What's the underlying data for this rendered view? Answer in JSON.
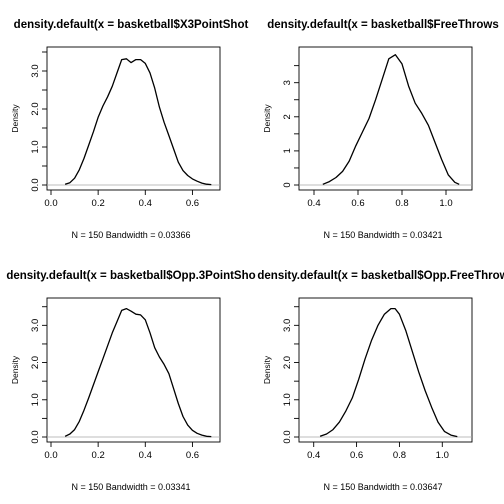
{
  "chart_data": [
    {
      "type": "line",
      "title": "density.default(x = basketball$X3PointShot",
      "ylabel": "Density",
      "xlabel": "N = 150   Bandwidth = 0.03366",
      "xticks": [
        "0.0",
        "0.2",
        "0.4",
        "0.6"
      ],
      "yticks": [
        "0.0",
        "1.0",
        "2.0",
        "3.0"
      ],
      "xlim": [
        0.0,
        0.7
      ],
      "ylim": [
        0.0,
        3.5
      ],
      "x": [
        0.06,
        0.08,
        0.1,
        0.12,
        0.14,
        0.16,
        0.18,
        0.2,
        0.22,
        0.24,
        0.26,
        0.28,
        0.3,
        0.32,
        0.34,
        0.36,
        0.38,
        0.4,
        0.42,
        0.44,
        0.46,
        0.48,
        0.5,
        0.52,
        0.54,
        0.56,
        0.58,
        0.6,
        0.62,
        0.64,
        0.66,
        0.68
      ],
      "y": [
        0.02,
        0.06,
        0.18,
        0.4,
        0.7,
        1.05,
        1.4,
        1.78,
        2.08,
        2.32,
        2.6,
        2.95,
        3.3,
        3.32,
        3.22,
        3.3,
        3.3,
        3.2,
        2.95,
        2.55,
        2.05,
        1.65,
        1.3,
        0.95,
        0.6,
        0.38,
        0.25,
        0.16,
        0.1,
        0.05,
        0.02,
        0.01
      ]
    },
    {
      "type": "line",
      "title": "density.default(x = basketball$FreeThrows",
      "ylabel": "Density",
      "xlabel": "N = 150   Bandwidth = 0.03421",
      "xticks": [
        "0.4",
        "0.6",
        "0.8",
        "1.0"
      ],
      "yticks": [
        "0",
        "1",
        "2",
        "3"
      ],
      "xlim": [
        0.35,
        1.1
      ],
      "ylim": [
        0.0,
        3.9
      ],
      "x": [
        0.44,
        0.47,
        0.5,
        0.53,
        0.56,
        0.59,
        0.62,
        0.65,
        0.68,
        0.71,
        0.74,
        0.77,
        0.8,
        0.83,
        0.86,
        0.89,
        0.92,
        0.95,
        0.98,
        1.01,
        1.04,
        1.06
      ],
      "y": [
        0.02,
        0.1,
        0.22,
        0.4,
        0.7,
        1.15,
        1.55,
        1.95,
        2.5,
        3.1,
        3.7,
        3.82,
        3.55,
        2.9,
        2.4,
        2.1,
        1.75,
        1.25,
        0.75,
        0.3,
        0.08,
        0.02
      ]
    },
    {
      "type": "line",
      "title": "density.default(x = basketball$Opp.3PointSho",
      "ylabel": "Density",
      "xlabel": "N = 150   Bandwidth = 0.03341",
      "xticks": [
        "0.0",
        "0.2",
        "0.4",
        "0.6"
      ],
      "yticks": [
        "0.0",
        "1.0",
        "2.0",
        "3.0"
      ],
      "xlim": [
        0.0,
        0.7
      ],
      "ylim": [
        0.0,
        3.6
      ],
      "x": [
        0.06,
        0.08,
        0.1,
        0.12,
        0.14,
        0.16,
        0.18,
        0.2,
        0.22,
        0.24,
        0.26,
        0.28,
        0.3,
        0.32,
        0.34,
        0.36,
        0.38,
        0.4,
        0.42,
        0.44,
        0.46,
        0.48,
        0.5,
        0.52,
        0.54,
        0.56,
        0.58,
        0.6,
        0.62,
        0.64,
        0.66,
        0.68
      ],
      "y": [
        0.02,
        0.08,
        0.2,
        0.42,
        0.72,
        1.05,
        1.4,
        1.75,
        2.1,
        2.45,
        2.8,
        3.1,
        3.4,
        3.45,
        3.38,
        3.3,
        3.28,
        3.15,
        2.8,
        2.4,
        2.15,
        1.95,
        1.7,
        1.3,
        0.9,
        0.55,
        0.32,
        0.18,
        0.1,
        0.05,
        0.02,
        0.01
      ]
    },
    {
      "type": "line",
      "title": "density.default(x = basketball$Opp.FreeThrow",
      "ylabel": "Density",
      "xlabel": "N = 150   Bandwidth = 0.03647",
      "xticks": [
        "0.4",
        "0.6",
        "0.8",
        "1.0"
      ],
      "yticks": [
        "0.0",
        "1.0",
        "2.0",
        "3.0"
      ],
      "xlim": [
        0.35,
        1.12
      ],
      "ylim": [
        0.0,
        3.6
      ],
      "x": [
        0.43,
        0.46,
        0.49,
        0.52,
        0.55,
        0.58,
        0.61,
        0.64,
        0.67,
        0.7,
        0.73,
        0.76,
        0.78,
        0.8,
        0.83,
        0.86,
        0.89,
        0.92,
        0.95,
        0.98,
        1.01,
        1.04,
        1.07
      ],
      "y": [
        0.02,
        0.08,
        0.2,
        0.4,
        0.7,
        1.05,
        1.55,
        2.1,
        2.6,
        3.0,
        3.3,
        3.45,
        3.45,
        3.3,
        2.85,
        2.3,
        1.75,
        1.25,
        0.8,
        0.4,
        0.15,
        0.05,
        0.01
      ]
    }
  ]
}
